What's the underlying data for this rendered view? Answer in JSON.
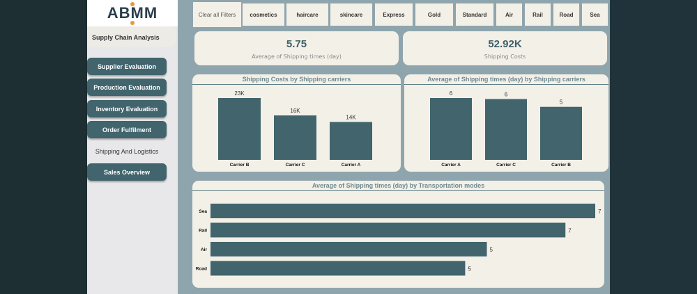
{
  "brand": {
    "logo_text": "ABMM",
    "subtitle": "Supply Chain Analysis"
  },
  "nav": [
    {
      "label": "Supplier Evaluation"
    },
    {
      "label": "Production Evaluation"
    },
    {
      "label": "Inventory Evaluation"
    },
    {
      "label": "Order Fulfilment"
    },
    {
      "label": "Shipping And Logistics",
      "active": true
    },
    {
      "label": "Sales Overview"
    }
  ],
  "filters": [
    "Clear all Filters",
    "cosmetics",
    "haircare",
    "skincare",
    "Express",
    "Gold",
    "Standard",
    "Air",
    "Rail",
    "Road",
    "Sea"
  ],
  "kpis": [
    {
      "value": "5.75",
      "label": "Average of Shipping times (day)"
    },
    {
      "value": "52.92K",
      "label": "Shipping Costs"
    }
  ],
  "colors": {
    "bar": "#41646d",
    "card": "#f3f0e8",
    "background": "#8fa5ad"
  },
  "chart_data": [
    {
      "type": "bar",
      "title": "Shipping Costs by Shipping carriers",
      "categories": [
        "Carrier B",
        "Carrier C",
        "Carrier A"
      ],
      "values": [
        22700,
        16300,
        13900
      ],
      "data_labels": [
        "23K",
        "16K",
        "14K"
      ]
    },
    {
      "type": "bar",
      "title": "Average of Shipping times (day) by Shipping carriers",
      "categories": [
        "Carrier A",
        "Carrier C",
        "Carrier B"
      ],
      "values": [
        5.95,
        5.85,
        5.1
      ],
      "data_labels": [
        "6",
        "6",
        "5"
      ]
    },
    {
      "type": "bar",
      "orientation": "horizontal",
      "title": "Average of Shipping times (day) by Transportation modes",
      "categories": [
        "Sea",
        "Rail",
        "Air",
        "Road"
      ],
      "values": [
        7.1,
        6.55,
        5.1,
        4.7
      ],
      "data_labels": [
        "7",
        "7",
        "5",
        "5"
      ]
    }
  ]
}
